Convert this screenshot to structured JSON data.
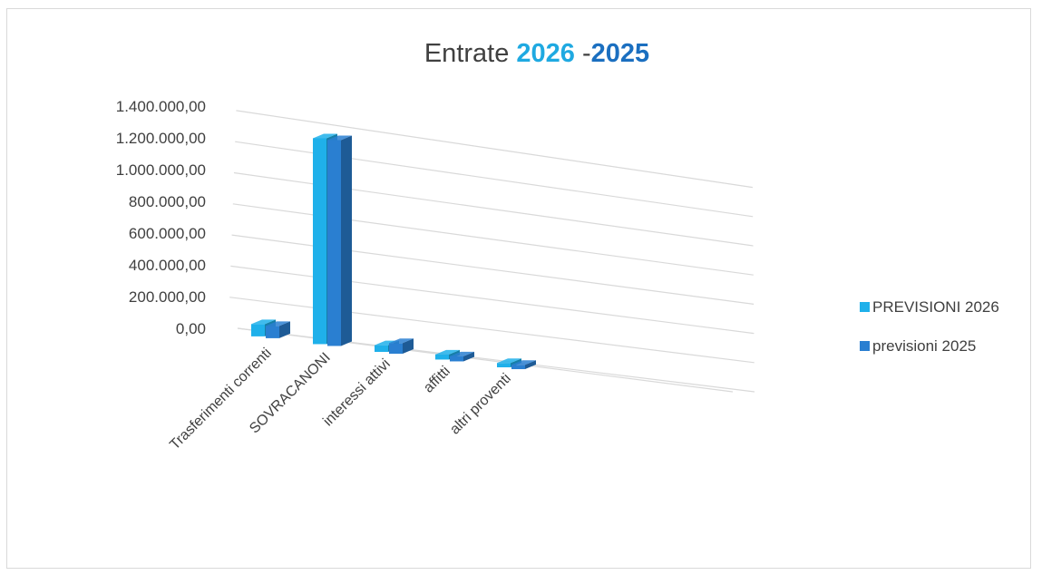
{
  "chart_data": {
    "type": "bar",
    "style": "3d-clustered-column",
    "title": {
      "prefix": "Entrate ",
      "year1": "2026",
      "separator": " -",
      "year2": "2025",
      "year1_color": "#1fa9e1",
      "year2_color": "#1b6fc0",
      "text_color": "#404040"
    },
    "categories": [
      "Trasferimenti correnti",
      "SOVRACANONI",
      "interessi attivi",
      "affitti",
      "altri proventi"
    ],
    "series": [
      {
        "name": "PREVISIONI 2026",
        "values": [
          60000,
          1280000,
          25000,
          15000,
          10000
        ],
        "color": "#1fb0ea"
      },
      {
        "name": "previsioni 2025",
        "values": [
          60000,
          1280000,
          50000,
          15000,
          10000
        ],
        "color": "#2a7fd1"
      }
    ],
    "ylim": [
      0,
      1400000
    ],
    "y_ticks": [
      "0,00",
      "200.000,00",
      "400.000,00",
      "600.000,00",
      "800.000,00",
      "1.000.000,00",
      "1.200.000,00",
      "1.400.000,00"
    ],
    "grid": true,
    "legend_position": "right"
  }
}
